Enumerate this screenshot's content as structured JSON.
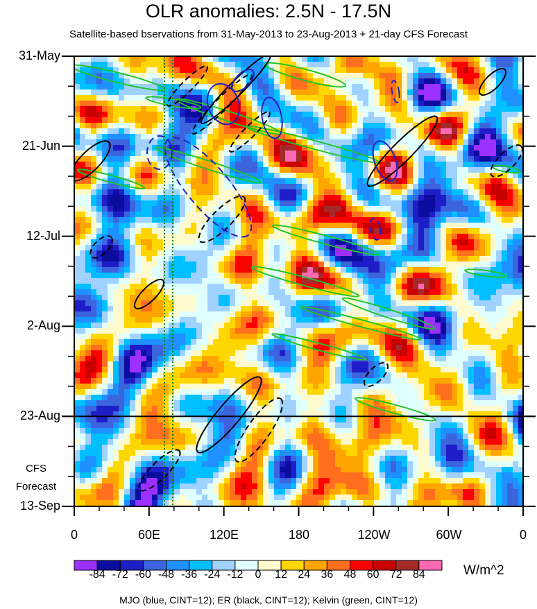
{
  "chart_data": {
    "type": "heatmap",
    "title": "OLR anomalies: 2.5N - 17.5N",
    "subtitle": "Satellite-based bservations from 31-May-2013 to 23-Aug-2013 + 21-day CFS Forecast",
    "y_ticks": [
      "31-May",
      "21-Jun",
      "12-Jul",
      "2-Aug",
      "23-Aug",
      "13-Sep"
    ],
    "x_ticks": [
      "0",
      "60E",
      "120E",
      "180",
      "120W",
      "60W",
      "0"
    ],
    "forecast_label_line1": "CFS",
    "forecast_label_line2": "Forecast",
    "forecast_start": "23-Aug",
    "colorbar": {
      "labels": [
        "-84",
        "-72",
        "-60",
        "-48",
        "-36",
        "-24",
        "-12",
        "0",
        "12",
        "24",
        "36",
        "48",
        "60",
        "72",
        "84"
      ],
      "colors": [
        "#9b30ff",
        "#0c0c9e",
        "#1e1ec8",
        "#3c64dc",
        "#1e90ff",
        "#00bfff",
        "#a0d2ff",
        "#e0ffff",
        "#fffacd",
        "#ffd700",
        "#ffa500",
        "#ff6f1e",
        "#ff0000",
        "#c80000",
        "#a52a2a",
        "#ff69b4"
      ],
      "unit": "W/m^2"
    },
    "footer": "MJO (blue, CINT=12); ER (black, CINT=12); Kelvin (green, CINT=12)"
  }
}
